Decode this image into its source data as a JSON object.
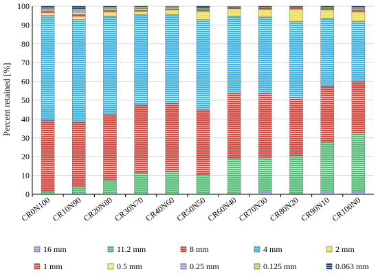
{
  "chart_data": {
    "type": "bar",
    "stacked": true,
    "ylabel": "Percent retained [%]",
    "xlabel": "",
    "ylim": [
      0,
      100
    ],
    "yticks": [
      0,
      10,
      20,
      30,
      40,
      50,
      60,
      70,
      80,
      90,
      100
    ],
    "grid": "horizontal",
    "legend_position": "bottom",
    "categories": [
      "CR0N100",
      "CR10N90",
      "CR20N80",
      "CR30N70",
      "CR40N60",
      "CR50N50",
      "CR60N40",
      "CR70N30",
      "CR80N20",
      "CR90N10",
      "CR100N0"
    ],
    "series": [
      {
        "name": "16 mm",
        "color": "#8fa3e0",
        "values": [
          0,
          0,
          0,
          0,
          0,
          0,
          0.3,
          1.2,
          0.3,
          1.2,
          1.5
        ]
      },
      {
        "name": "11.2 mm",
        "color": "#4fbf73",
        "values": [
          1.5,
          4.3,
          7.5,
          11.5,
          12.0,
          10.4,
          19.0,
          18.5,
          20.3,
          26.6,
          30.5
        ]
      },
      {
        "name": "8 mm",
        "color": "#e0473c",
        "values": [
          38.0,
          34.0,
          35.0,
          36.0,
          36.5,
          34.4,
          34.3,
          33.8,
          30.6,
          29.7,
          28.0
        ]
      },
      {
        "name": "4 mm",
        "color": "#3ab4ec",
        "values": [
          55.5,
          54.5,
          52.3,
          48.0,
          47.0,
          48.0,
          41.0,
          40.8,
          40.7,
          36.0,
          32.0
        ]
      },
      {
        "name": "2 mm",
        "color": "#f2e04a",
        "values": [
          1.5,
          1.7,
          2.2,
          1.8,
          2.5,
          4.5,
          4.0,
          4.0,
          6.5,
          4.5,
          5.0
        ]
      },
      {
        "name": "1 mm",
        "color": "#e0473c",
        "values": [
          1.0,
          1.2,
          0.8,
          0.8,
          0.6,
          0.6,
          0.5,
          0.6,
          0.6,
          0.6,
          0.8
        ]
      },
      {
        "name": "0.5 mm",
        "color": "#f5ef5a",
        "values": [
          0.7,
          0.9,
          0.7,
          0.6,
          0.6,
          0.4,
          0.2,
          0.3,
          0.3,
          0.3,
          0.5
        ]
      },
      {
        "name": "0.25 mm",
        "color": "#8fa3e0",
        "values": [
          0.6,
          0.9,
          0.5,
          0.5,
          0.4,
          0.3,
          0.2,
          0.2,
          0.2,
          0.3,
          0.5
        ]
      },
      {
        "name": "0.125 mm",
        "color": "#a3d65a",
        "values": [
          0.5,
          1.0,
          0.6,
          0.5,
          0.3,
          0.5,
          0.2,
          0.3,
          0.3,
          0.4,
          0.6
        ]
      },
      {
        "name": "0.063 mm",
        "color": "#1a3a8a",
        "values": [
          0.7,
          1.5,
          0.4,
          0.3,
          0.1,
          0.9,
          0.1,
          0.3,
          0.2,
          0.4,
          0.6
        ]
      }
    ]
  }
}
